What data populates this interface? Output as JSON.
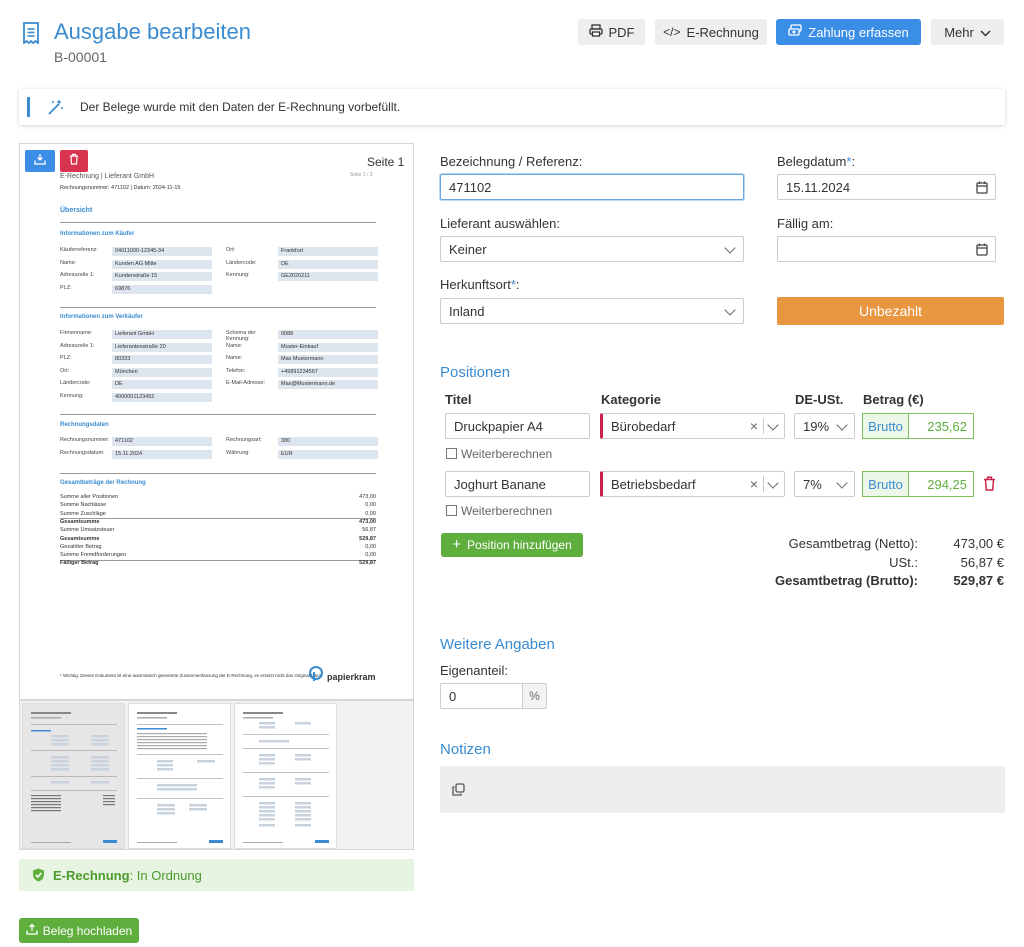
{
  "header": {
    "title": "Ausgabe bearbeiten",
    "number": "B-00001",
    "buttons": {
      "pdf": "PDF",
      "erechnung": "E-Rechnung",
      "zahlung": "Zahlung erfassen",
      "mehr": "Mehr"
    }
  },
  "notice": {
    "text": "Der Belege wurde mit den Daten der E-Rechnung vorbefüllt."
  },
  "preview": {
    "page_label": "Seite 1",
    "doc": {
      "header": "E-Rechnung | Lieferant GmbH",
      "subline": "Rechnungsnummer: 471102 | Datum: 2024-11-15",
      "page_small": "Seite 1 / 3",
      "overview": "Übersicht",
      "buyer_title": "Informationen zum Käufer",
      "buyer": [
        [
          "Käuferreferenz:",
          "04011000-12345-34",
          "Ort:",
          "Frankfurt"
        ],
        [
          "Name:",
          "Kunden AG Mitte",
          "Ländercode:",
          "DE"
        ],
        [
          "Adresszeile 1:",
          "Kundenstraße 15",
          "Kennung:",
          "GE2020211"
        ],
        [
          "PLZ:",
          "69876",
          "",
          ""
        ]
      ],
      "seller_title": "Informationen zum Verkäufer",
      "seller": [
        [
          "Firmenname:",
          "Lieferant GmbH",
          "Schema der Kennung:",
          "0088"
        ],
        [
          "Adresszeile 1:",
          "Lieferantenstraße 20",
          "Name:",
          "Muster-Einkauf"
        ],
        [
          "PLZ:",
          "80333",
          "Name:",
          "Max Mustermann"
        ],
        [
          "Ort:",
          "München",
          "Telefon:",
          "+49891234567"
        ],
        [
          "Ländercode:",
          "DE",
          "E-Mail-Adresse:",
          "Max@Mustermann.de"
        ],
        [
          "Kennung:",
          "4000001123452",
          "",
          ""
        ]
      ],
      "invoice_title": "Rechnungsdaten",
      "invoice": [
        [
          "Rechnungsnummer:",
          "471102",
          "Rechnungsart:",
          "380"
        ],
        [
          "Rechnungsdatum:",
          "15.11.2024",
          "Währung:",
          "EUR"
        ]
      ],
      "totals_title": "Gesamtbeträge der Rechnung",
      "totals": [
        [
          "Summe aller Positionen",
          "473,00"
        ],
        [
          "Summe Nachlässe",
          "0,00"
        ],
        [
          "Summe Zuschläge",
          "0,00"
        ],
        [
          "Gesamtsumme",
          "473,00"
        ],
        [
          "Summe Umsatzsteuer",
          "56,87"
        ],
        [
          "Gesamtsumme",
          "529,87"
        ],
        [
          "Gezahlter Betrag",
          "0,00"
        ],
        [
          "Summe Fremdforderungen",
          "0,00"
        ],
        [
          "Fälliger Betrag",
          "529,87"
        ]
      ],
      "footer_note": "* Wichtig: Dieses Dokument ist eine automatisch generierte Zusammenfassung der E-Rechnung, es ersetzt nicht das Originaldatei!",
      "brand": "papierkram"
    },
    "erechnung_label": "E-Rechnung",
    "erechnung_status": ": In Ordnung",
    "upload_label": "Beleg hochladen"
  },
  "form": {
    "bezeichnung_label": "Bezeichnung / Referenz:",
    "bezeichnung_value": "471102",
    "belegdatum_label": "Belegdatum",
    "belegdatum_value": "15.11.2024",
    "lieferant_label": "Lieferant auswählen:",
    "lieferant_value": "Keiner",
    "faellig_label": "Fällig am:",
    "faellig_value": "",
    "herkunft_label": "Herkunftsort",
    "herkunft_value": "Inland",
    "status_label": "Unbezahlt",
    "required_mark": "*",
    "colon": ":"
  },
  "positionen": {
    "title": "Positionen",
    "headers": {
      "titel": "Titel",
      "kategorie": "Kategorie",
      "ust": "DE-USt.",
      "betrag": "Betrag (€)"
    },
    "rows": [
      {
        "titel": "Druckpapier A4",
        "kategorie": "Bürobedarf",
        "ust": "19%",
        "brutto": "Brutto",
        "betrag": "235,62",
        "weiter": "Weiterberechnen"
      },
      {
        "titel": "Joghurt Banane",
        "kategorie": "Betriebsbedarf",
        "ust": "7%",
        "brutto": "Brutto",
        "betrag": "294,25",
        "weiter": "Weiterberechnen"
      }
    ],
    "add_label": "Position hinzufügen",
    "summary": [
      {
        "label": "Gesamtbetrag (Netto):",
        "value": "473,00 €"
      },
      {
        "label": "USt.:",
        "value": "56,87 €"
      },
      {
        "label": "Gesamtbetrag (Brutto):",
        "value": "529,87 €"
      }
    ]
  },
  "weitere": {
    "title": "Weitere Angaben",
    "eigenanteil_label": "Eigenanteil:",
    "eigenanteil_value": "0",
    "eigenanteil_unit": "%"
  },
  "notizen": {
    "title": "Notizen"
  },
  "colors": {
    "accent": "#3a8bd0",
    "primary_button": "#3a8ee6",
    "success": "#5fae3e",
    "warning": "#e8963f",
    "danger": "#c8234b"
  }
}
